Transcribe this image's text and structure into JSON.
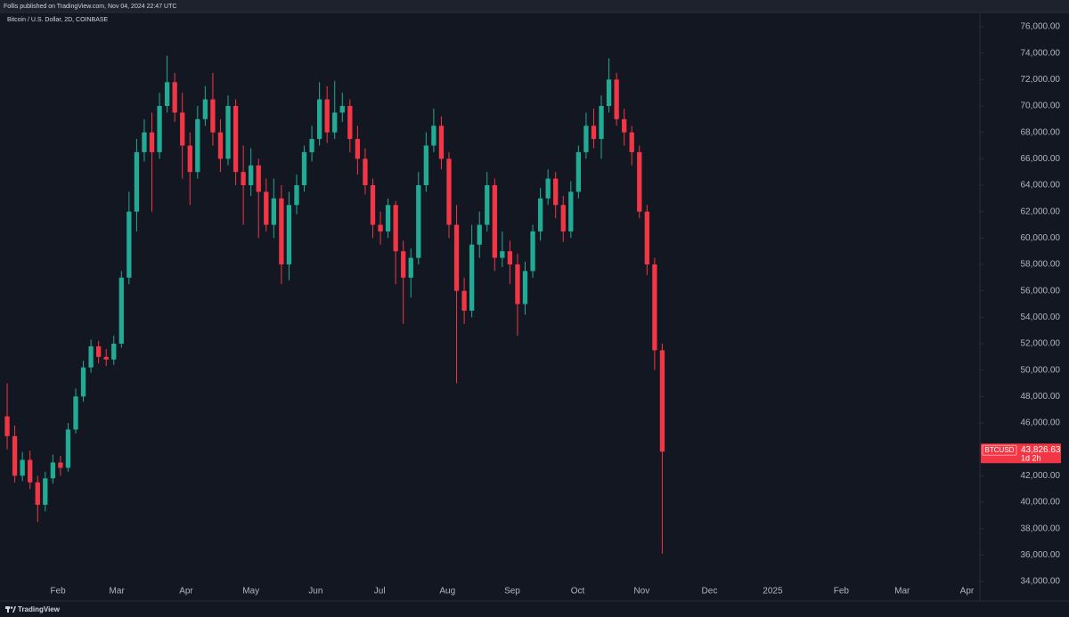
{
  "header": {
    "publisher": "Follis published on TradingView.com, Nov 04, 2024 22:47 UTC",
    "logo": "TradingView"
  },
  "chart_data": {
    "type": "candlestick",
    "title": "Bitcoin / U.S. Dollar, 2D, COINBASE",
    "series": [
      {
        "name": "BTCUSD",
        "up_color": "#22ab94",
        "down_color": "#f23645",
        "open": [
          46500,
          45000,
          42000,
          43200,
          41500,
          39800,
          41800,
          43000,
          42600,
          45500,
          48000,
          50200,
          51800,
          51000,
          50800,
          52000,
          57000,
          62000,
          66500,
          68000,
          66500,
          70000,
          71800,
          69500,
          67000,
          65000,
          69000,
          70500,
          68000,
          66000,
          70000,
          65000,
          64000,
          65500,
          63500,
          61000,
          63000,
          58000,
          62500,
          64000,
          66500,
          67500,
          70500,
          68000,
          69500,
          70000,
          67500,
          66000,
          64000,
          61000,
          60500,
          62500,
          59000,
          57000,
          58500,
          64000,
          67000,
          68500,
          66000,
          61000,
          56000,
          54500,
          59500,
          61000,
          64000,
          58500,
          59000,
          58000,
          55000,
          57500,
          60500,
          63000,
          64500,
          62500,
          60500,
          63500,
          66500,
          68500,
          67500,
          70000,
          72000,
          69000,
          68000,
          66500,
          62000,
          58000,
          51500
        ],
        "high": [
          49000,
          45800,
          43800,
          43900,
          42000,
          42300,
          43600,
          43500,
          46000,
          48600,
          50700,
          52300,
          52200,
          51600,
          52600,
          57500,
          63500,
          67500,
          69000,
          69500,
          71000,
          73800,
          72500,
          71000,
          68000,
          70000,
          71500,
          72500,
          69000,
          70800,
          70500,
          67000,
          66800,
          66000,
          64500,
          64500,
          64000,
          63500,
          64800,
          67000,
          68500,
          71800,
          71500,
          71900,
          71000,
          70500,
          68500,
          66800,
          64500,
          62000,
          63000,
          62800,
          59800,
          59200,
          65000,
          68000,
          69800,
          69200,
          66500,
          62500,
          57000,
          61000,
          62000,
          65000,
          64500,
          60500,
          59800,
          58800,
          58200,
          61000,
          63800,
          65200,
          65000,
          63200,
          64300,
          67000,
          69500,
          69800,
          70800,
          73600,
          72500,
          69800,
          68500,
          67000,
          62500,
          58500,
          52000
        ],
        "low": [
          44000,
          41500,
          41600,
          41000,
          38500,
          39300,
          41400,
          42000,
          42300,
          45200,
          47600,
          49800,
          50500,
          50300,
          50400,
          51700,
          56500,
          60500,
          65800,
          62000,
          66000,
          69500,
          68800,
          64500,
          62500,
          64500,
          68500,
          67000,
          65000,
          65500,
          64000,
          61000,
          63200,
          60000,
          60500,
          60000,
          56500,
          56800,
          61800,
          63500,
          65800,
          67000,
          67200,
          67500,
          68800,
          66500,
          64800,
          63300,
          60000,
          59500,
          60000,
          56500,
          53500,
          55500,
          58000,
          63500,
          66500,
          65200,
          60000,
          49000,
          53500,
          54000,
          58500,
          60500,
          57500,
          57800,
          56500,
          52600,
          54200,
          57000,
          59800,
          62500,
          61500,
          59700,
          60000,
          63000,
          66000,
          66800,
          66000,
          69500,
          68500,
          67000,
          65500,
          61500,
          57200,
          50000,
          36100
        ],
        "close": [
          45000,
          42000,
          43200,
          41500,
          39800,
          41800,
          43000,
          42600,
          45500,
          48000,
          50200,
          51800,
          51000,
          50800,
          52000,
          57000,
          62000,
          66500,
          68000,
          66500,
          70000,
          71800,
          69500,
          67000,
          65000,
          69000,
          70500,
          68000,
          66000,
          70000,
          65000,
          64000,
          65500,
          63500,
          61000,
          63000,
          58000,
          62500,
          64000,
          66500,
          67500,
          70500,
          68000,
          69500,
          70000,
          67500,
          66000,
          64000,
          61000,
          60500,
          62500,
          59000,
          57000,
          58500,
          64000,
          67000,
          68500,
          66000,
          61000,
          56000,
          54500,
          59500,
          61000,
          64000,
          58500,
          59000,
          58000,
          55000,
          57500,
          60500,
          63000,
          64500,
          62500,
          60500,
          63500,
          66500,
          68500,
          67500,
          70000,
          72000,
          69000,
          68000,
          66500,
          62000,
          58000,
          51500,
          43826.63
        ]
      }
    ],
    "price_label": "43,826.63",
    "countdown": "1d 2h",
    "grid": false,
    "xlim": [
      -0.94,
      127.7
    ],
    "xticks": [
      {
        "value": 6.67,
        "label": "Feb"
      },
      {
        "value": 14.4,
        "label": "Mar"
      },
      {
        "value": 23.5,
        "label": "Apr"
      },
      {
        "value": 32.0,
        "label": "May"
      },
      {
        "value": 40.5,
        "label": "Jun"
      },
      {
        "value": 48.9,
        "label": "Jul"
      },
      {
        "value": 57.8,
        "label": "Aug"
      },
      {
        "value": 66.3,
        "label": "Sep"
      },
      {
        "value": 74.9,
        "label": "Oct"
      },
      {
        "value": 83.3,
        "label": "Nov"
      },
      {
        "value": 92.2,
        "label": "Dec"
      },
      {
        "value": 100.5,
        "label": "2025"
      },
      {
        "value": 109.5,
        "label": "Feb"
      },
      {
        "value": 117.5,
        "label": "Mar"
      },
      {
        "value": 126.0,
        "label": "Apr"
      }
    ],
    "ylim": [
      33190,
      77080
    ],
    "yticks": [
      {
        "value": 34000,
        "label": "34,000.00"
      },
      {
        "value": 36000,
        "label": "36,000.00"
      },
      {
        "value": 38000,
        "label": "38,000.00"
      },
      {
        "value": 40000,
        "label": "40,000.00"
      },
      {
        "value": 42000,
        "label": "42,000.00"
      },
      {
        "value": 44000,
        "label": "44,000.00"
      },
      {
        "value": 46000,
        "label": "46,000.00"
      },
      {
        "value": 48000,
        "label": "48,000.00"
      },
      {
        "value": 50000,
        "label": "50,000.00"
      },
      {
        "value": 52000,
        "label": "52,000.00"
      },
      {
        "value": 54000,
        "label": "54,000.00"
      },
      {
        "value": 56000,
        "label": "56,000.00"
      },
      {
        "value": 58000,
        "label": "58,000.00"
      },
      {
        "value": 60000,
        "label": "60,000.00"
      },
      {
        "value": 62000,
        "label": "62,000.00"
      },
      {
        "value": 64000,
        "label": "64,000.00"
      },
      {
        "value": 66000,
        "label": "66,000.00"
      },
      {
        "value": 68000,
        "label": "68,000.00"
      },
      {
        "value": 70000,
        "label": "70,000.00"
      },
      {
        "value": 72000,
        "label": "72,000.00"
      },
      {
        "value": 74000,
        "label": "74,000.00"
      },
      {
        "value": 76000,
        "label": "76,000.00"
      }
    ]
  }
}
